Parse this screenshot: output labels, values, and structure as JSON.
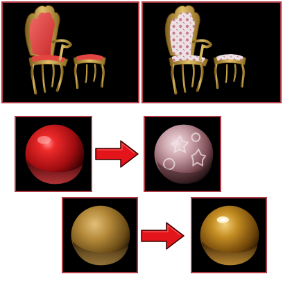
{
  "figure": {
    "panels": [
      {
        "id": "chair-before",
        "content": "armchair-and-ottoman-red-upholstery-render",
        "shows_text": false
      },
      {
        "id": "chair-after",
        "content": "armchair-and-ottoman-patterned-upholstery-render",
        "shows_text": false
      },
      {
        "id": "red-sphere-before",
        "content": "glossy-red-material-sphere",
        "shows_text": false
      },
      {
        "id": "patterned-sphere-after",
        "content": "patterned-fabric-material-sphere",
        "shows_text": false
      },
      {
        "id": "gold-sphere-before",
        "content": "dull-gold-material-sphere",
        "shows_text": false
      },
      {
        "id": "gold-sphere-after",
        "content": "glossy-gold-material-sphere",
        "shows_text": false
      }
    ],
    "arrows": [
      {
        "id": "red-transform-arrow",
        "icon": "right-arrow-icon"
      },
      {
        "id": "gold-transform-arrow",
        "icon": "right-arrow-icon"
      }
    ],
    "colors": {
      "panel_background": "#000000",
      "panel_border": "#b03a44",
      "arrow_fill": "#e3151a",
      "arrow_stroke": "#3a0000",
      "wood_gold": "#c9a13f",
      "upholstery_red": "#e9433f",
      "upholstery_pattern": "#e8d8dc"
    }
  }
}
